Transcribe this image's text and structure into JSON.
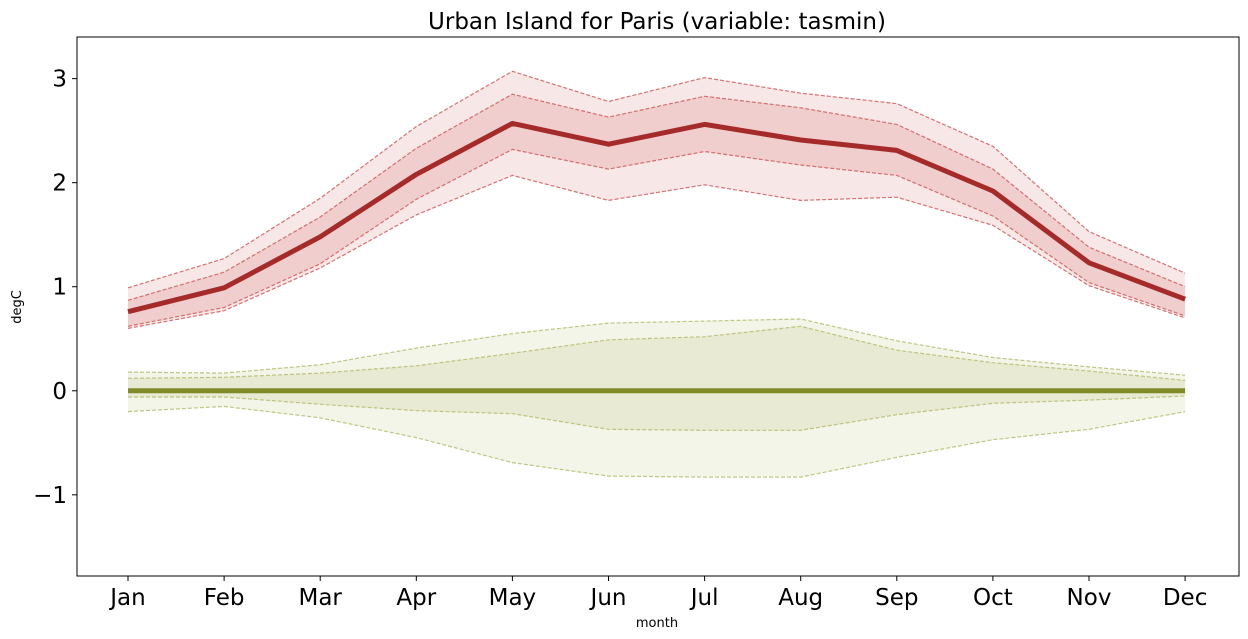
{
  "chart_data": {
    "type": "area",
    "title": "Urban Island for Paris (variable: tasmin)",
    "xlabel": "month",
    "ylabel": "degC",
    "categories": [
      "Jan",
      "Feb",
      "Mar",
      "Apr",
      "May",
      "Jun",
      "Jul",
      "Aug",
      "Sep",
      "Oct",
      "Nov",
      "Dec"
    ],
    "ylim": [
      -1.78,
      3.4
    ],
    "yticks": [
      -1,
      0,
      1,
      2,
      3
    ],
    "yticklabels": [
      "−1",
      "0",
      "1",
      "2",
      "3"
    ],
    "grid": false,
    "series": [
      {
        "color": "#a52a2a",
        "band_color": "#cd5c5c",
        "median": [
          0.76,
          0.99,
          1.48,
          2.08,
          2.57,
          2.37,
          2.56,
          2.41,
          2.31,
          1.92,
          1.23,
          0.88
        ],
        "outer_upper": [
          0.99,
          1.27,
          1.85,
          2.54,
          3.07,
          2.78,
          3.01,
          2.86,
          2.76,
          2.35,
          1.53,
          1.13
        ],
        "inner_upper": [
          0.87,
          1.14,
          1.67,
          2.33,
          2.85,
          2.63,
          2.83,
          2.72,
          2.56,
          2.13,
          1.38,
          1.0
        ],
        "inner_lower": [
          0.62,
          0.8,
          1.22,
          1.84,
          2.32,
          2.13,
          2.3,
          2.17,
          2.07,
          1.68,
          1.04,
          0.72
        ],
        "outer_lower": [
          0.6,
          0.77,
          1.18,
          1.69,
          2.07,
          1.83,
          1.98,
          1.83,
          1.86,
          1.59,
          1.01,
          0.7
        ]
      },
      {
        "color": "#808a28",
        "band_color": "#b5bc6e",
        "median": [
          0.0,
          0.0,
          0.0,
          0.0,
          0.0,
          0.0,
          0.0,
          0.0,
          0.0,
          0.0,
          0.0,
          0.0
        ],
        "outer_upper": [
          0.18,
          0.17,
          0.25,
          0.41,
          0.55,
          0.65,
          0.67,
          0.69,
          0.48,
          0.32,
          0.23,
          0.15
        ],
        "inner_upper": [
          0.12,
          0.13,
          0.17,
          0.24,
          0.36,
          0.49,
          0.52,
          0.62,
          0.39,
          0.27,
          0.19,
          0.1
        ],
        "inner_lower": [
          -0.06,
          -0.06,
          -0.13,
          -0.19,
          -0.22,
          -0.37,
          -0.38,
          -0.38,
          -0.23,
          -0.12,
          -0.09,
          -0.05
        ],
        "outer_lower": [
          -0.2,
          -0.15,
          -0.26,
          -0.45,
          -0.69,
          -0.82,
          -0.83,
          -0.83,
          -0.64,
          -0.47,
          -0.37,
          -0.2
        ]
      }
    ]
  }
}
